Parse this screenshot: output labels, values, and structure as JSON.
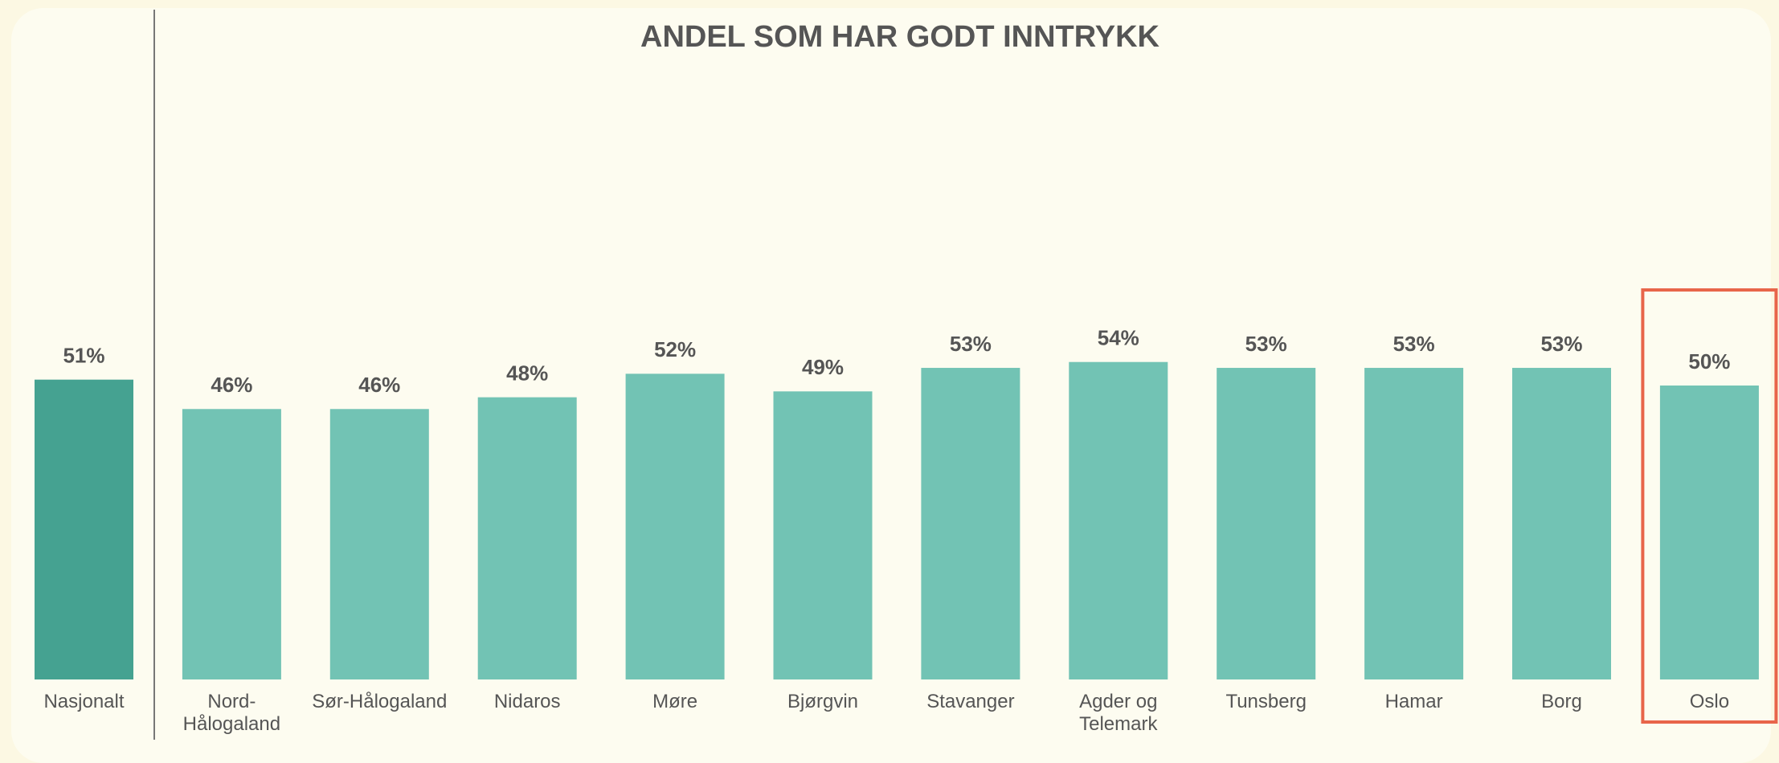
{
  "chart_data": {
    "type": "bar",
    "title": "ANDEL SOM HAR GODT INNTRYKK",
    "categories": [
      "Nasjonalt",
      "Nord-Hålogaland",
      "Sør-Hålogaland",
      "Nidaros",
      "Møre",
      "Bjørgvin",
      "Stavanger",
      "Agder og Telemark",
      "Tunsberg",
      "Hamar",
      "Borg",
      "Oslo"
    ],
    "values": [
      51,
      46,
      46,
      48,
      52,
      49,
      53,
      54,
      53,
      53,
      53,
      50
    ],
    "value_labels": [
      "51%",
      "46%",
      "46%",
      "48%",
      "52%",
      "49%",
      "53%",
      "54%",
      "53%",
      "53%",
      "53%",
      "50%"
    ],
    "colors": [
      "#45a291",
      "#72c3b4",
      "#72c3b4",
      "#72c3b4",
      "#72c3b4",
      "#72c3b4",
      "#72c3b4",
      "#72c3b4",
      "#72c3b4",
      "#72c3b4",
      "#72c3b4",
      "#72c3b4"
    ],
    "ylim": [
      0,
      100
    ],
    "highlight": "Oslo",
    "highlight_color": "#e8654a"
  }
}
